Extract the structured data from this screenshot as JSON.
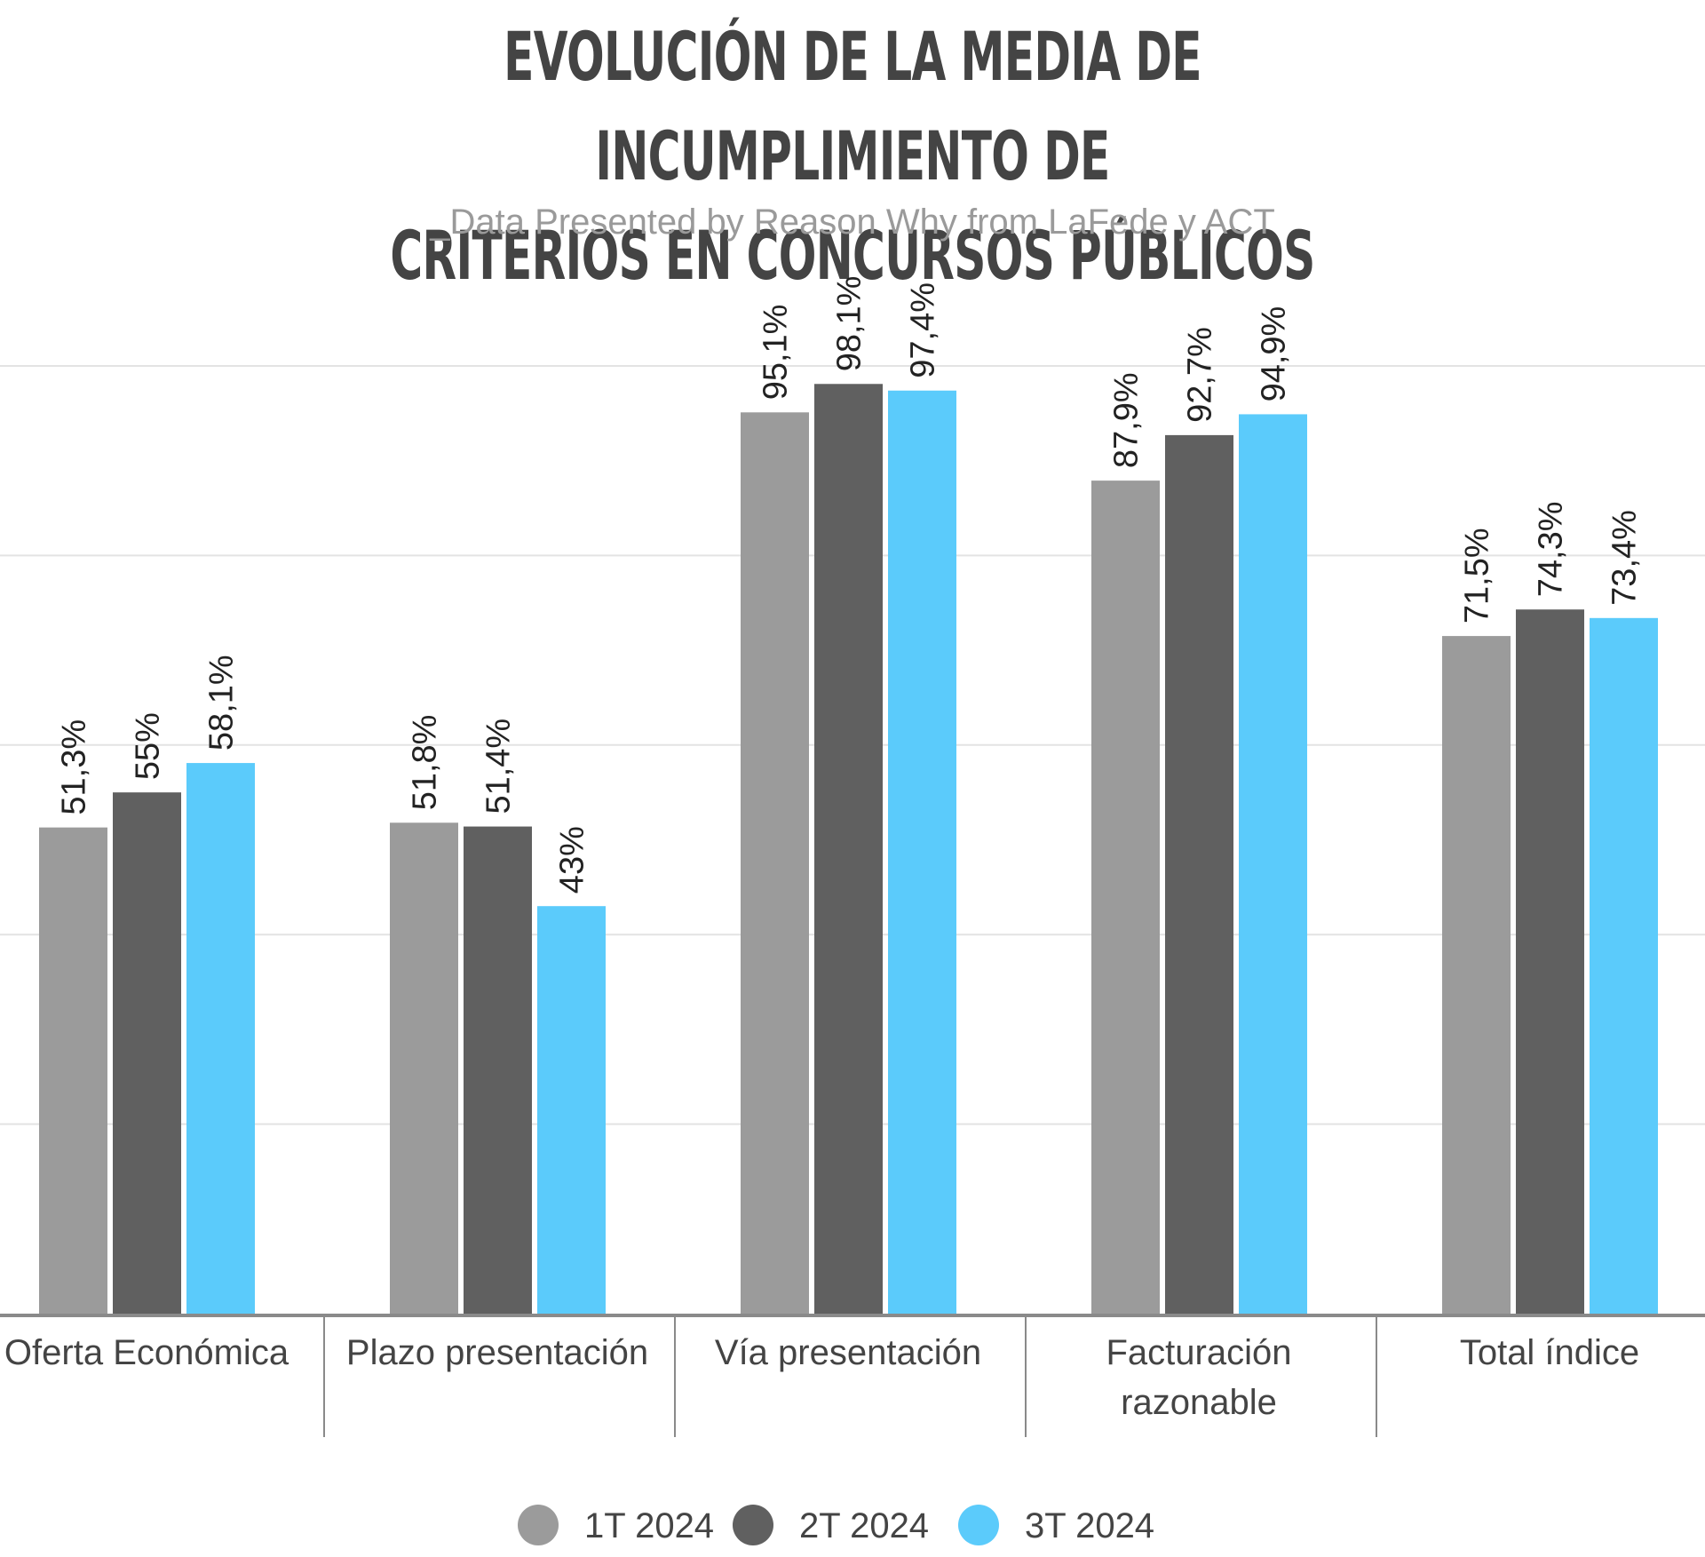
{
  "title_line1": "EVOLUCIÓN DE LA MEDIA DE INCUMPLIMIENTO DE",
  "title_line2": "CRITERIOS EN CONCURSOS PÚBLICOS",
  "subtitle": "_Data Presented by Reason Why from LaFede y ACT",
  "chart_data": {
    "type": "bar",
    "title": "EVOLUCIÓN DE LA MEDIA DE INCUMPLIMIENTO DE CRITERIOS EN CONCURSOS PÚBLICOS",
    "categories": [
      [
        "Oferta Económica"
      ],
      [
        "Plazo presentación"
      ],
      [
        "Vía presentación"
      ],
      [
        "Facturación",
        "razonable"
      ],
      [
        "Total índice"
      ]
    ],
    "series": [
      {
        "name": "1T 2024",
        "color": "#9b9b9b",
        "values": [
          51.3,
          51.8,
          95.1,
          87.9,
          71.5
        ],
        "labels": [
          "51,3%",
          "51,8%",
          "95,1%",
          "87,9%",
          "71,5%"
        ]
      },
      {
        "name": "2T 2024",
        "color": "#606060",
        "values": [
          55,
          51.4,
          98.1,
          92.7,
          74.3
        ],
        "labels": [
          "55%",
          "51,4%",
          "98,1%",
          "92,7%",
          "74,3%"
        ]
      },
      {
        "name": "3T 2024",
        "color": "#5bcbfb",
        "values": [
          58.1,
          43,
          97.4,
          94.9,
          73.4
        ],
        "labels": [
          "58,1%",
          "43%",
          "97,4%",
          "94,9%",
          "73,4%"
        ]
      }
    ],
    "ylim": [
      0,
      110
    ],
    "gridlines": [
      20,
      40,
      60,
      80,
      100
    ],
    "grid": true,
    "legend_position": "bottom-center"
  }
}
